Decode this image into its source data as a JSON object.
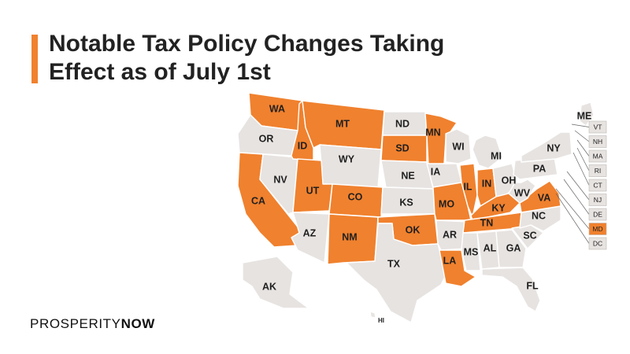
{
  "title": {
    "line1": "Notable Tax Policy Changes Taking",
    "line2": "Effect as of July 1st"
  },
  "colors": {
    "highlight": "#F0812E",
    "base": "#E7E3E1",
    "border": "#FFFFFF",
    "text": "#222222"
  },
  "states": {
    "WA": {
      "label": "WA",
      "highlighted": true
    },
    "OR": {
      "label": "OR",
      "highlighted": false
    },
    "CA": {
      "label": "CA",
      "highlighted": true
    },
    "NV": {
      "label": "NV",
      "highlighted": false
    },
    "ID": {
      "label": "ID",
      "highlighted": true
    },
    "MT": {
      "label": "MT",
      "highlighted": true
    },
    "WY": {
      "label": "WY",
      "highlighted": false
    },
    "UT": {
      "label": "UT",
      "highlighted": true
    },
    "CO": {
      "label": "CO",
      "highlighted": true
    },
    "AZ": {
      "label": "AZ",
      "highlighted": false
    },
    "NM": {
      "label": "NM",
      "highlighted": true
    },
    "ND": {
      "label": "ND",
      "highlighted": false
    },
    "SD": {
      "label": "SD",
      "highlighted": true
    },
    "NE": {
      "label": "NE",
      "highlighted": false
    },
    "KS": {
      "label": "KS",
      "highlighted": false
    },
    "OK": {
      "label": "OK",
      "highlighted": true
    },
    "TX": {
      "label": "TX",
      "highlighted": false
    },
    "MN": {
      "label": "MN",
      "highlighted": true
    },
    "IA": {
      "label": "IA",
      "highlighted": false
    },
    "MO": {
      "label": "MO",
      "highlighted": true
    },
    "AR": {
      "label": "AR",
      "highlighted": false
    },
    "LA": {
      "label": "LA",
      "highlighted": true
    },
    "WI": {
      "label": "WI",
      "highlighted": false
    },
    "IL": {
      "label": "IL",
      "highlighted": true
    },
    "MI": {
      "label": "MI",
      "highlighted": false
    },
    "IN": {
      "label": "IN",
      "highlighted": true
    },
    "OH": {
      "label": "OH",
      "highlighted": false
    },
    "KY": {
      "label": "KY",
      "highlighted": true
    },
    "TN": {
      "label": "TN",
      "highlighted": true
    },
    "MS": {
      "label": "MS",
      "highlighted": false
    },
    "AL": {
      "label": "AL",
      "highlighted": false
    },
    "GA": {
      "label": "GA",
      "highlighted": false
    },
    "FL": {
      "label": "FL",
      "highlighted": false
    },
    "SC": {
      "label": "SC",
      "highlighted": false
    },
    "NC": {
      "label": "NC",
      "highlighted": false
    },
    "VA": {
      "label": "VA",
      "highlighted": true
    },
    "WV": {
      "label": "WV",
      "highlighted": false
    },
    "PA": {
      "label": "PA",
      "highlighted": false
    },
    "NY": {
      "label": "NY",
      "highlighted": false
    },
    "ME": {
      "label": "ME",
      "highlighted": false
    },
    "AK": {
      "label": "AK",
      "highlighted": false
    },
    "HI": {
      "label": "HI",
      "highlighted": false
    }
  },
  "northeast_boxes": [
    {
      "label": "VT",
      "highlighted": false
    },
    {
      "label": "NH",
      "highlighted": false
    },
    {
      "label": "MA",
      "highlighted": false
    },
    {
      "label": "RI",
      "highlighted": false
    },
    {
      "label": "CT",
      "highlighted": false
    },
    {
      "label": "NJ",
      "highlighted": false
    },
    {
      "label": "DE",
      "highlighted": false
    },
    {
      "label": "MD",
      "highlighted": true
    },
    {
      "label": "DC",
      "highlighted": false
    }
  ],
  "logo": {
    "part1": "PROSPERITY",
    "part2": "NOW"
  }
}
